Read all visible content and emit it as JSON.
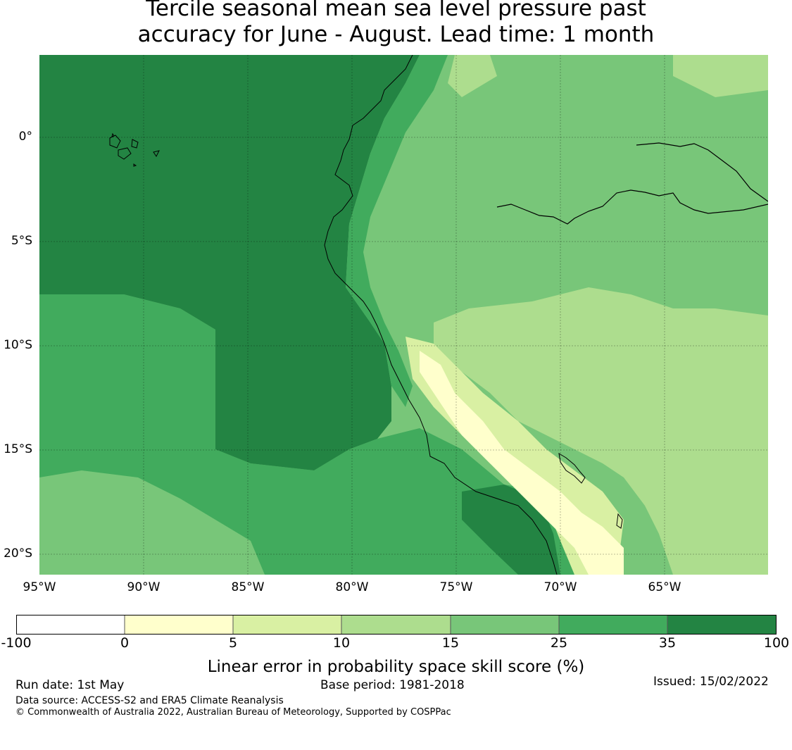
{
  "title_line1": "Tercile seasonal mean sea level pressure past",
  "title_line2": "accuracy for June - August. Lead time: 1 month",
  "map": {
    "lat_ticks": [
      "0°",
      "5°S",
      "10°S",
      "15°S",
      "20°S"
    ],
    "lon_ticks": [
      "95°W",
      "90°W",
      "85°W",
      "80°W",
      "75°W",
      "70°W",
      "65°W"
    ],
    "grid_lines": true,
    "features": [
      "Pacific coastline of Ecuador, Peru and northern Chile",
      "Galapagos Islands",
      "Amazon River",
      "Lake Titicaca"
    ]
  },
  "colorbar": {
    "ticks": [
      "-100",
      "0",
      "5",
      "10",
      "15",
      "25",
      "35",
      "100"
    ],
    "colors": [
      "#ffffff",
      "#ffffcc",
      "#d9f0a3",
      "#addd8e",
      "#78c679",
      "#41ab5d",
      "#238443"
    ],
    "label": "Linear error in probability space skill score (%)"
  },
  "footer": {
    "run_date": "Run date: 1st May",
    "base_period": "Base period: 1981-2018",
    "issued": "Issued: 15/02/2022",
    "data_source": "Data source: ACCESS-S2 and ERA5 Climate Reanalysis",
    "copyright": "© Commonwealth of Australia 2022, Australian Bureau of Meteorology, Supported by COSPPac"
  }
}
